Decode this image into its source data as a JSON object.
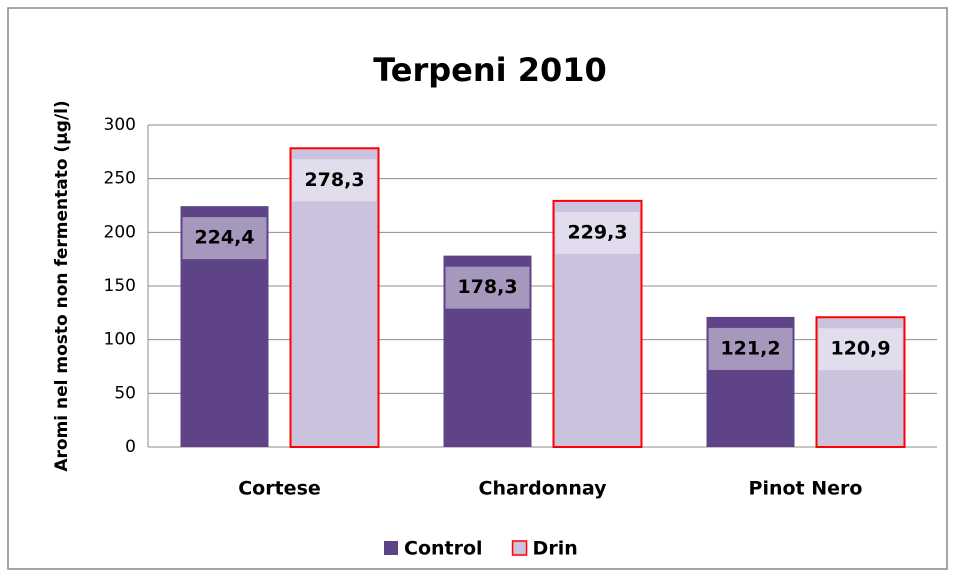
{
  "chart_data": {
    "type": "bar",
    "title": "Terpeni 2010",
    "y_label": "Aromi nel mosto non fermentato (µg/l)",
    "categories": [
      "Cortese",
      "Chardonnay",
      "Pinot Nero"
    ],
    "series": [
      {
        "name": "Control",
        "color": "#5e4387",
        "values": [
          224.4,
          178.3,
          121.2
        ],
        "value_labels": [
          "224,4",
          "178,3",
          "121,2"
        ]
      },
      {
        "name": "Drin",
        "color": "#cbc2de",
        "edgecolor": "#ff0000",
        "values": [
          278.3,
          229.3,
          120.9
        ],
        "value_labels": [
          "278,3",
          "229,3",
          "120,9"
        ]
      }
    ],
    "ylim": [
      0,
      300
    ],
    "yticks": [
      0,
      50,
      100,
      150,
      200,
      250,
      300
    ],
    "grid": true,
    "legend": "bottom"
  }
}
